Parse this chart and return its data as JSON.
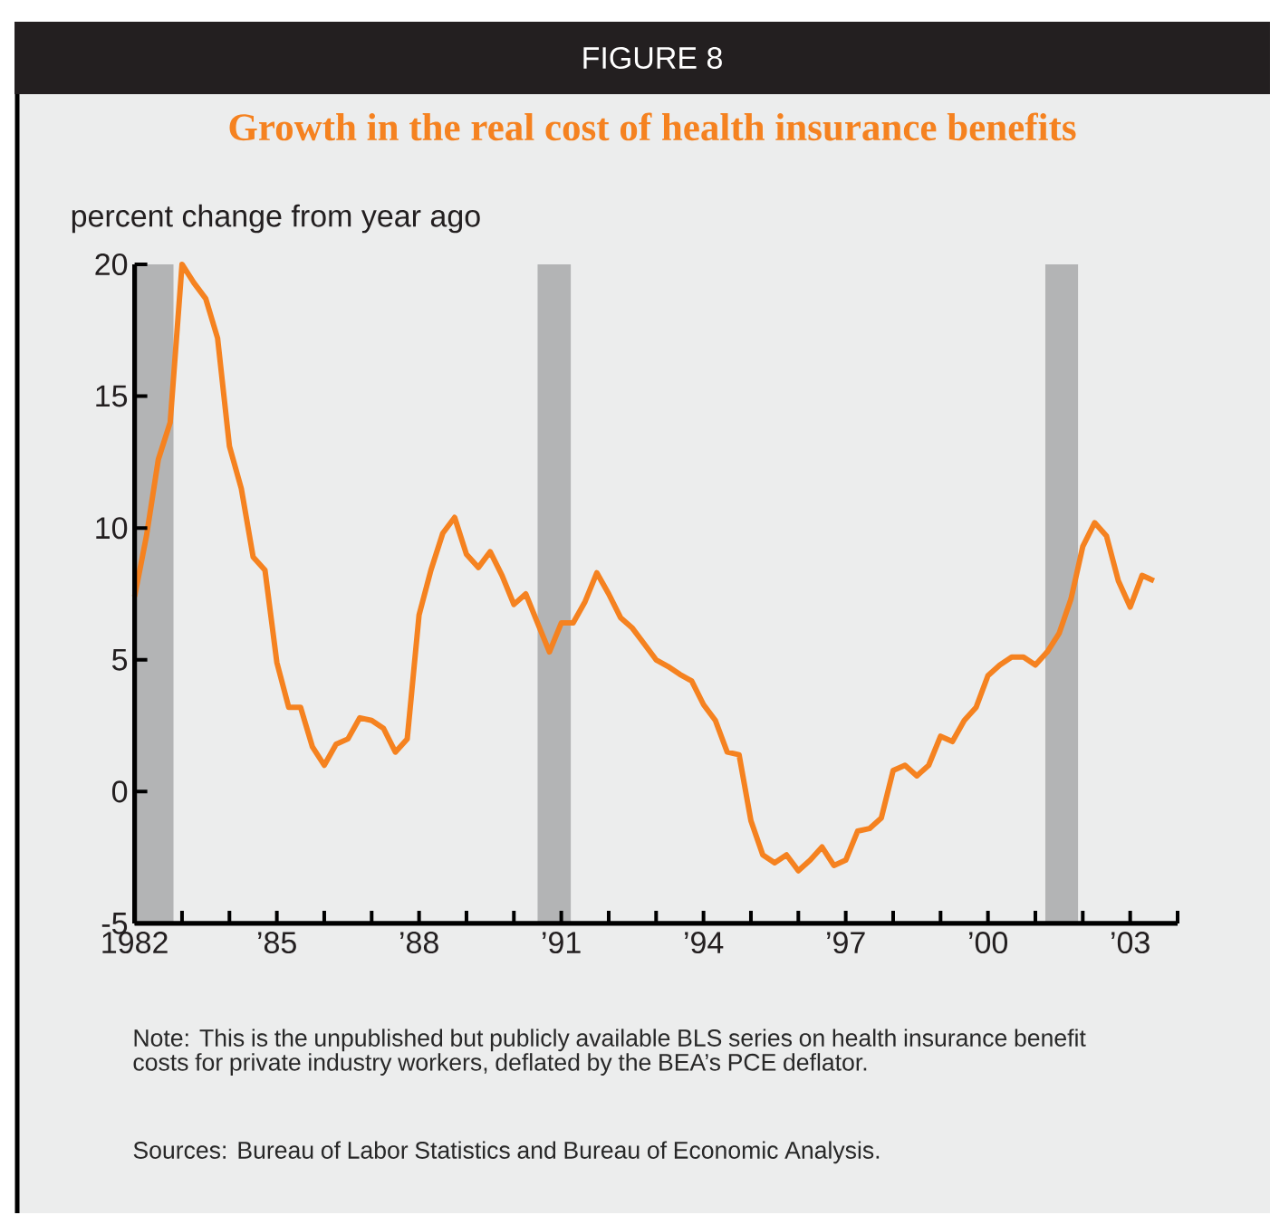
{
  "chart_data": {
    "type": "line",
    "title": "Growth in the real cost of health insurance benefits",
    "ylabel": "percent change from year ago",
    "annotations": [
      "FIGURE 8",
      "Note: This is the unpublished but publicly available BLS series on health insurance benefit costs for private industry workers, deflated by the BEA’s PCE deflator.",
      "Sources: Bureau of Labor Statistics and Bureau of Economic Analysis."
    ],
    "x": [
      1982,
      1982.25,
      1982.5,
      1982.75,
      1983,
      1983.25,
      1983.5,
      1983.75,
      1984,
      1984.25,
      1984.5,
      1984.75,
      1985,
      1985.25,
      1985.5,
      1985.75,
      1986,
      1986.25,
      1986.5,
      1986.75,
      1987,
      1987.25,
      1987.5,
      1987.75,
      1988,
      1988.25,
      1988.5,
      1988.75,
      1989,
      1989.25,
      1989.5,
      1989.75,
      1990,
      1990.25,
      1990.5,
      1990.75,
      1991,
      1991.25,
      1991.5,
      1991.75,
      1992,
      1992.25,
      1992.5,
      1992.75,
      1993,
      1993.25,
      1993.5,
      1993.75,
      1994,
      1994.25,
      1994.5,
      1994.75,
      1995,
      1995.25,
      1995.5,
      1995.75,
      1996,
      1996.25,
      1996.5,
      1996.75,
      1997,
      1997.25,
      1997.5,
      1997.75,
      1998,
      1998.25,
      1998.5,
      1998.75,
      1999,
      1999.25,
      1999.5,
      1999.75,
      2000,
      2000.25,
      2000.5,
      2000.75,
      2001,
      2001.25,
      2001.5,
      2001.75,
      2002,
      2002.25,
      2002.5,
      2002.75,
      2003,
      2003.25,
      2003.5
    ],
    "series": [
      {
        "color": "#f58220",
        "values": [
          7.4,
          9.7,
          12.6,
          14.0,
          20.0,
          19.3,
          18.7,
          17.2,
          13.1,
          11.5,
          8.9,
          8.4,
          4.9,
          3.2,
          3.2,
          1.7,
          1.0,
          1.8,
          2.0,
          2.8,
          2.7,
          2.4,
          1.5,
          2.0,
          6.7,
          8.4,
          9.8,
          10.4,
          9.0,
          8.5,
          9.1,
          8.2,
          7.1,
          7.5,
          6.4,
          5.3,
          6.4,
          6.4,
          7.2,
          8.3,
          7.5,
          6.6,
          6.2,
          5.6,
          5.0,
          4.75,
          4.45,
          4.2,
          3.3,
          2.7,
          1.5,
          1.4,
          -1.1,
          -2.4,
          -2.7,
          -2.4,
          -3.0,
          -2.6,
          -2.1,
          -2.8,
          -2.6,
          -1.5,
          -1.4,
          -1.0,
          0.8,
          1.0,
          0.6,
          1.0,
          2.1,
          1.9,
          2.7,
          3.2,
          4.4,
          4.8,
          5.1,
          5.1,
          4.8,
          5.3,
          6.0,
          7.3,
          9.3,
          10.2,
          9.7,
          8.0,
          7.0,
          8.2,
          8.0
        ]
      }
    ],
    "xlim": [
      1982,
      2004
    ],
    "ylim": [
      -5,
      20
    ],
    "xticks": [
      {
        "value": 1982,
        "label": "1982"
      },
      {
        "value": 1983,
        "label": null
      },
      {
        "value": 1984,
        "label": null
      },
      {
        "value": 1985,
        "label": "’85"
      },
      {
        "value": 1986,
        "label": null
      },
      {
        "value": 1987,
        "label": null
      },
      {
        "value": 1988,
        "label": "’88"
      },
      {
        "value": 1989,
        "label": null
      },
      {
        "value": 1990,
        "label": null
      },
      {
        "value": 1991,
        "label": "’91"
      },
      {
        "value": 1992,
        "label": null
      },
      {
        "value": 1993,
        "label": null
      },
      {
        "value": 1994,
        "label": "’94"
      },
      {
        "value": 1995,
        "label": null
      },
      {
        "value": 1996,
        "label": null
      },
      {
        "value": 1997,
        "label": "’97"
      },
      {
        "value": 1998,
        "label": null
      },
      {
        "value": 1999,
        "label": null
      },
      {
        "value": 2000,
        "label": "’00"
      },
      {
        "value": 2001,
        "label": null
      },
      {
        "value": 2002,
        "label": null
      },
      {
        "value": 2003,
        "label": "’03"
      },
      {
        "value": 2004,
        "label": null
      }
    ],
    "yticks": [
      -5,
      0,
      5,
      10,
      15,
      20
    ],
    "bands": [
      {
        "axis": "x",
        "from": 1982,
        "to": 1982.82,
        "color": "#b3b4b5"
      },
      {
        "axis": "x",
        "from": 1990.5,
        "to": 1991.2,
        "color": "#b3b4b5"
      },
      {
        "axis": "x",
        "from": 2001.21,
        "to": 2001.9,
        "color": "#b3b4b5"
      }
    ]
  }
}
